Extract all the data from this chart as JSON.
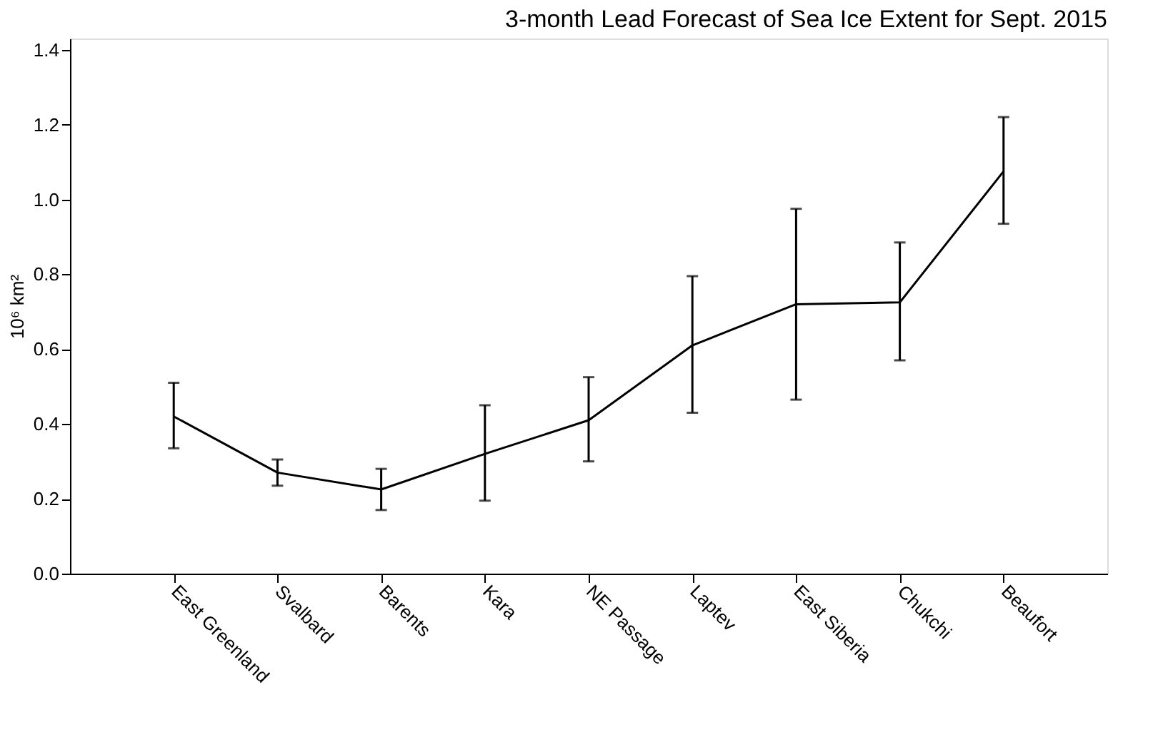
{
  "chart_data": {
    "type": "line",
    "title": "3-month Lead Forecast of Sea Ice Extent for Sept. 2015",
    "ylabel": "10⁶ km²",
    "categories": [
      "East Greenland",
      "Svalbard",
      "Barents",
      "Kara",
      "NE Passage",
      "Laptev",
      "East Siberia",
      "Chukchi",
      "Beaufort"
    ],
    "series": [
      {
        "color": "#000000",
        "values": [
          0.42,
          0.27,
          0.225,
          0.32,
          0.41,
          0.61,
          0.72,
          0.725,
          1.075
        ],
        "errors": [
          [
            0.335,
            0.51
          ],
          [
            0.235,
            0.305
          ],
          [
            0.17,
            0.28
          ],
          [
            0.195,
            0.45
          ],
          [
            0.3,
            0.525
          ],
          [
            0.43,
            0.795
          ],
          [
            0.465,
            0.975
          ],
          [
            0.57,
            0.885
          ],
          [
            0.935,
            1.22
          ]
        ]
      }
    ],
    "ylim": [
      0,
      1.43
    ],
    "yticks": [
      {
        "value": 0,
        "label": "0.0"
      },
      {
        "value": 0.2,
        "label": "0.2"
      },
      {
        "value": 0.4,
        "label": "0.4"
      },
      {
        "value": 0.6,
        "label": "0.6"
      },
      {
        "value": 0.8,
        "label": "0.8"
      },
      {
        "value": 1.0,
        "label": "1.0"
      },
      {
        "value": 1.2,
        "label": "1.2"
      },
      {
        "value": 1.4,
        "label": "1.4"
      }
    ],
    "grid": false,
    "marker": "none",
    "line_style": "solid"
  }
}
